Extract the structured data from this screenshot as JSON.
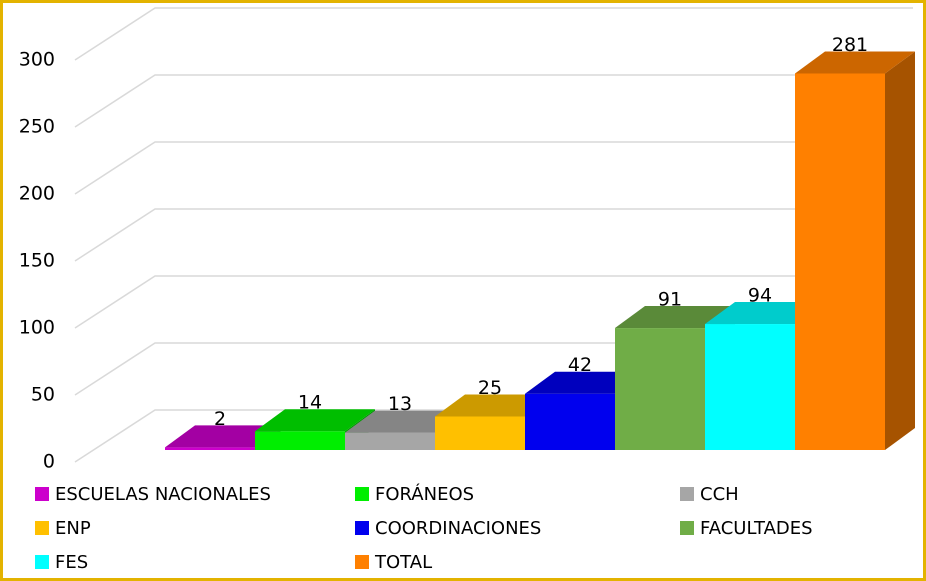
{
  "chart_data": {
    "type": "bar3d",
    "categories": [
      "ESCUELAS NACIONALES",
      "FORÁNEOS",
      "CCH",
      "ENP",
      "COORDINACIONES",
      "FACULTADES",
      "FES",
      "TOTAL"
    ],
    "values": [
      2,
      14,
      13,
      25,
      42,
      91,
      94,
      281
    ],
    "colors": [
      "#cc00cc",
      "#00ee00",
      "#a6a6a6",
      "#ffc000",
      "#0000ee",
      "#70ad47",
      "#00ffff",
      "#ff8000"
    ],
    "ylim": [
      0,
      300
    ],
    "yticks": [
      0,
      50,
      100,
      150,
      200,
      250,
      300
    ],
    "grid": true
  }
}
